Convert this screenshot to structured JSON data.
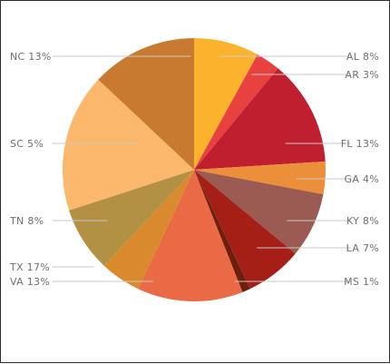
{
  "chart_data": {
    "type": "pie",
    "start_angle": "12 o'clock",
    "direction": "clockwise",
    "slices": [
      {
        "label": "AL",
        "value": 8,
        "text": "AL 8%",
        "color": "#fbb32e",
        "side": "right"
      },
      {
        "label": "AR",
        "value": 3,
        "text": "AR 3%",
        "color": "#e8413f",
        "side": "right"
      },
      {
        "label": "FL",
        "value": 13,
        "text": "FL 13%",
        "color": "#c01f30",
        "side": "right"
      },
      {
        "label": "GA",
        "value": 4,
        "text": "GA 4%",
        "color": "#eb8f3a",
        "side": "right"
      },
      {
        "label": "KY",
        "value": 8,
        "text": "KY 8%",
        "color": "#9b5b52",
        "side": "right"
      },
      {
        "label": "LA",
        "value": 7,
        "text": "LA 7%",
        "color": "#a51f17",
        "side": "right"
      },
      {
        "label": "MS",
        "value": 1,
        "text": "MS 1%",
        "color": "#6d1f0e",
        "side": "right"
      },
      {
        "label": "NC",
        "value": 13,
        "text": "NC 13%",
        "color": "#ea6a45",
        "side": "left"
      },
      {
        "label": "SC",
        "value": 5,
        "text": "SC 5%",
        "color": "#d98a2c",
        "side": "left"
      },
      {
        "label": "TN",
        "value": 8,
        "text": "TN 8%",
        "color": "#b29144",
        "side": "left"
      },
      {
        "label": "TX",
        "value": 17,
        "text": "TX 17%",
        "color": "#fbb86c",
        "side": "left"
      },
      {
        "label": "VA",
        "value": 13,
        "text": "VA 13%",
        "color": "#c87a30",
        "side": "left"
      }
    ]
  }
}
